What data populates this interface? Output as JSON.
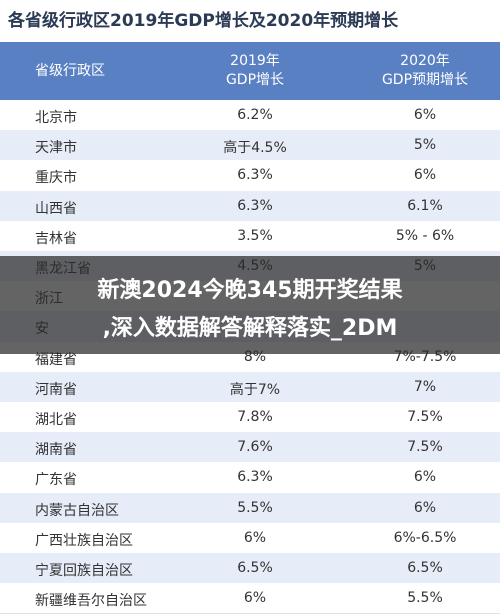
{
  "header": {
    "title": "各省级行政区2019年GDP增长及2020年预期增长"
  },
  "table": {
    "columns": [
      [
        "省级行政区"
      ],
      [
        "2019年",
        "GDP增长"
      ],
      [
        "2020年",
        "GDP预期增长"
      ]
    ],
    "rows": [
      [
        "北京市",
        "6.2%",
        "6%"
      ],
      [
        "天津市",
        "高于4.5%",
        "5%"
      ],
      [
        "重庆市",
        "6.3%",
        "6%"
      ],
      [
        "山西省",
        "6.3%",
        "6.1%"
      ],
      [
        "吉林省",
        "3.5%",
        "5% - 6%"
      ],
      [
        "黑龙江省",
        "4.5%",
        "5%"
      ],
      [
        "浙江"
      ],
      [
        "安"
      ],
      [
        "福建省",
        "8%",
        "7%-7.5%"
      ],
      [
        "河南省",
        "高于7%",
        "7%"
      ],
      [
        "湖北省",
        "7.8%",
        "7.5%"
      ],
      [
        "湖南省",
        "7.6%",
        "7.5%"
      ],
      [
        "广东省",
        "6.3%",
        "6%"
      ],
      [
        "内蒙古自治区",
        "5.5%",
        "6%"
      ],
      [
        "广西壮族自治区",
        "6%",
        "6%-6.5%"
      ],
      [
        "宁夏回族自治区",
        "6.5%",
        "6.5%"
      ],
      [
        "新疆维吾尔自治区",
        "6%",
        "5.5%"
      ]
    ]
  },
  "banner": {
    "lines": [
      "新澳2024今晚345期开奖结果",
      ",深入数据解答解释落实_2DM"
    ]
  }
}
